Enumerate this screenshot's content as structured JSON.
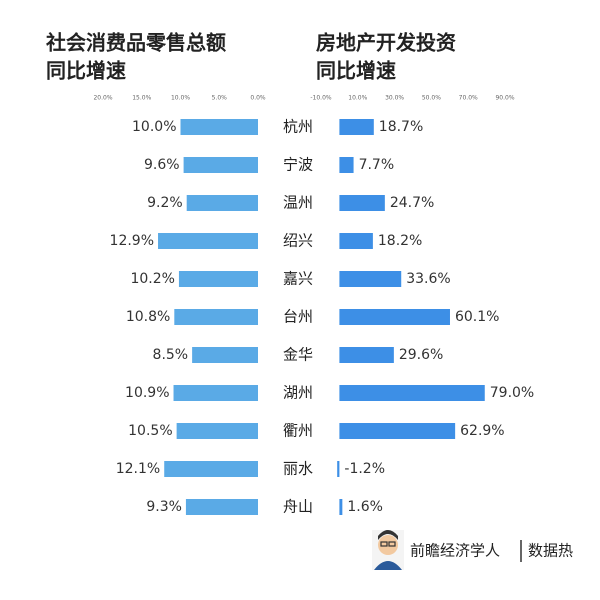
{
  "chart_data": [
    {
      "type": "bar",
      "orientation": "horizontal",
      "x_reversed": true,
      "title": [
        "社会消费品零售总额",
        "同比增速"
      ],
      "categories": [
        "杭州",
        "宁波",
        "温州",
        "绍兴",
        "嘉兴",
        "台州",
        "金华",
        "湖州",
        "衢州",
        "丽水",
        "舟山"
      ],
      "values": [
        10.0,
        9.6,
        9.2,
        12.9,
        10.2,
        10.8,
        8.5,
        10.9,
        10.5,
        12.1,
        9.3
      ],
      "value_labels": [
        "10.0%",
        "9.6%",
        "9.2%",
        "12.9%",
        "10.2%",
        "10.8%",
        "8.5%",
        "10.9%",
        "10.5%",
        "12.1%",
        "9.3%"
      ],
      "color": "#5aaae6",
      "xlim": [
        0,
        20
      ],
      "xticks": [
        {
          "value": 20,
          "label": "20.0%"
        },
        {
          "value": 15,
          "label": "15.0%"
        },
        {
          "value": 10,
          "label": "10.0%"
        },
        {
          "value": 5,
          "label": "5.0%"
        },
        {
          "value": 0,
          "label": "0.0%"
        }
      ]
    },
    {
      "type": "bar",
      "orientation": "horizontal",
      "x_reversed": false,
      "title": [
        "房地产开发投资",
        "同比增速"
      ],
      "values": [
        18.7,
        7.7,
        24.7,
        18.2,
        33.6,
        60.1,
        29.6,
        79.0,
        62.9,
        -1.2,
        1.6
      ],
      "value_labels": [
        "18.7%",
        "7.7%",
        "24.7%",
        "18.2%",
        "33.6%",
        "60.1%",
        "29.6%",
        "79.0%",
        "62.9%",
        "-1.2%",
        "1.6%"
      ],
      "color": "#3d8fe6",
      "xlim": [
        -10,
        90
      ],
      "xticks": [
        {
          "value": -10,
          "label": "-10.0%"
        },
        {
          "value": 10,
          "label": "10.0%"
        },
        {
          "value": 30,
          "label": "30.0%"
        },
        {
          "value": 50,
          "label": "50.0%"
        },
        {
          "value": 70,
          "label": "70.0%"
        },
        {
          "value": 90,
          "label": "90.0%"
        }
      ]
    }
  ],
  "footer": {
    "author": "前瞻经济学人",
    "source": "数据热"
  }
}
